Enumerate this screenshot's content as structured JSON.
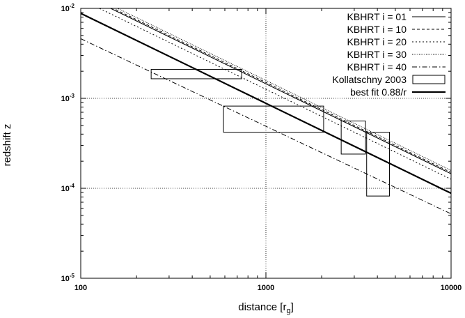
{
  "chart_data": {
    "type": "line",
    "x_scale": "log",
    "y_scale": "log",
    "xlim": [
      100,
      10000
    ],
    "ylim": [
      1e-05,
      0.01
    ],
    "xlabel_main": "distance [r",
    "xlabel_sub": "g",
    "xlabel_end": "]",
    "ylabel": "redshift z",
    "x_ticks": [
      {
        "value": 100,
        "label": "100"
      },
      {
        "value": 1000,
        "label": "1000"
      },
      {
        "value": 10000,
        "label": "10000"
      }
    ],
    "y_ticks": [
      {
        "value": 1e-05,
        "base": "10",
        "exp": "-5"
      },
      {
        "value": 0.0001,
        "base": "10",
        "exp": "-4"
      },
      {
        "value": 0.001,
        "base": "10",
        "exp": "-3"
      },
      {
        "value": 0.01,
        "base": "10",
        "exp": "-2"
      }
    ],
    "grid": "dotted at x=1000 and y=1e-4, 1e-3",
    "legend_position": "top-right",
    "series": [
      {
        "name": "KBHRT i = 01",
        "style": "solid-thin",
        "x": [
          100,
          10000
        ],
        "y": [
          0.0145,
          0.000145
        ]
      },
      {
        "name": "KBHRT i = 10",
        "style": "dashed",
        "x": [
          100,
          10000
        ],
        "y": [
          0.015,
          0.00015
        ]
      },
      {
        "name": "KBHRT i = 20",
        "style": "dotted",
        "x": [
          100,
          10000
        ],
        "y": [
          0.0126,
          0.000126
        ]
      },
      {
        "name": "KBHRT i = 30",
        "style": "fine-dotted",
        "x": [
          100,
          10000
        ],
        "y": [
          0.0158,
          0.000158
        ]
      },
      {
        "name": "KBHRT i = 40",
        "style": "dash-dot",
        "x": [
          100,
          10000
        ],
        "y": [
          0.0046,
          5.2e-05
        ]
      },
      {
        "name": "best fit 0.88/r",
        "style": "solid-thick",
        "x": [
          100,
          10000
        ],
        "y": [
          0.0088,
          8.8e-05
        ]
      }
    ],
    "boxes": {
      "name": "Kollatschny 2003",
      "items": [
        {
          "x0": 240,
          "x1": 740,
          "y0": 0.00165,
          "y1": 0.0021
        },
        {
          "x0": 590,
          "x1": 2050,
          "y0": 0.00042,
          "y1": 0.00082
        },
        {
          "x0": 2550,
          "x1": 3450,
          "y0": 0.00024,
          "y1": 0.00056
        },
        {
          "x0": 3500,
          "x1": 4650,
          "y0": 8.2e-05,
          "y1": 0.00042
        }
      ]
    }
  }
}
